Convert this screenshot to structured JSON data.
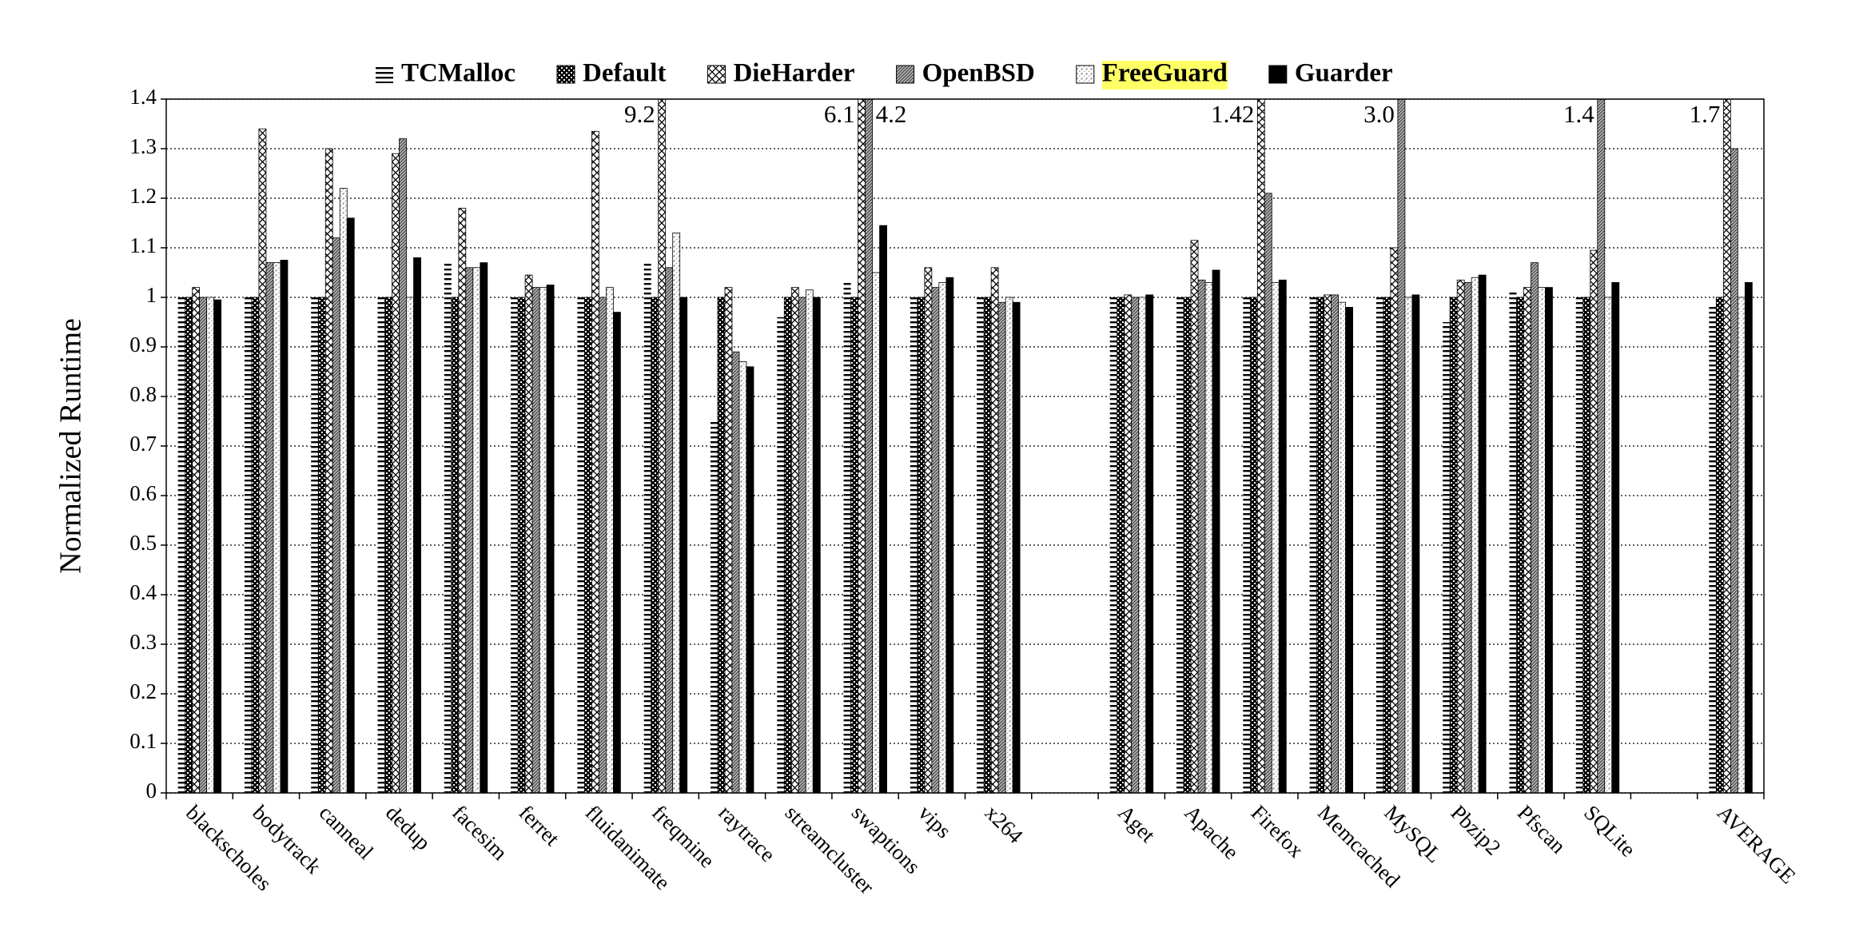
{
  "chart_data": {
    "type": "bar",
    "y_label": "Normalized Runtime",
    "categories": [
      "blackscholes",
      "bodytrack",
      "canneal",
      "dedup",
      "facesim",
      "ferret",
      "fluidanimate",
      "freqmine",
      "raytrace",
      "streamcluster",
      "swaptions",
      "vips",
      "x264",
      null,
      "Aget",
      "Apache",
      "Firefox",
      "Memcached",
      "MySQL",
      "Pbzip2",
      "Pfscan",
      "SQLite",
      null,
      "AVERAGE"
    ],
    "series": [
      {
        "name": "TCMalloc",
        "color": "#000000",
        "pattern": "horizontal-lines",
        "values": [
          1.0,
          1.0,
          1.0,
          1.0,
          1.07,
          1.0,
          1.0,
          1.07,
          0.75,
          0.96,
          1.03,
          1.0,
          1.0,
          null,
          1.0,
          1.0,
          1.0,
          1.0,
          1.0,
          0.95,
          1.01,
          1.0,
          null,
          0.985
        ]
      },
      {
        "name": "Default",
        "color": "#000000",
        "pattern": "checker",
        "values": [
          1.0,
          1.0,
          1.0,
          1.0,
          1.0,
          1.0,
          1.0,
          1.0,
          1.0,
          1.0,
          1.0,
          1.0,
          1.0,
          null,
          1.0,
          1.0,
          1.0,
          1.0,
          1.0,
          1.0,
          1.0,
          1.0,
          null,
          1.0
        ]
      },
      {
        "name": "DieHarder",
        "color": "#000000",
        "pattern": "cross-hatch",
        "values": [
          1.02,
          1.34,
          1.3,
          1.29,
          1.18,
          1.045,
          1.335,
          9.2,
          1.02,
          1.02,
          6.1,
          1.06,
          1.06,
          null,
          1.005,
          1.115,
          1.42,
          1.005,
          1.1,
          1.035,
          1.02,
          1.095,
          null,
          1.7
        ],
        "value_labels": [
          null,
          null,
          null,
          null,
          null,
          null,
          null,
          "9.2",
          null,
          null,
          "6.1",
          null,
          null,
          null,
          null,
          null,
          "1.42",
          null,
          null,
          null,
          null,
          null,
          null,
          "1.7"
        ]
      },
      {
        "name": "OpenBSD",
        "color": "#000000",
        "pattern": "diagonal-dense",
        "values": [
          1.0,
          1.07,
          1.12,
          1.32,
          1.06,
          1.02,
          1.0,
          1.06,
          0.89,
          1.0,
          4.2,
          1.02,
          0.99,
          null,
          1.0,
          1.035,
          1.21,
          1.005,
          3.0,
          1.03,
          1.07,
          1.4,
          null,
          1.3
        ],
        "value_labels": [
          null,
          null,
          null,
          null,
          null,
          null,
          null,
          null,
          null,
          null,
          "4.2",
          null,
          null,
          null,
          null,
          null,
          null,
          null,
          "3.0",
          null,
          null,
          "1.4",
          null,
          null
        ]
      },
      {
        "name": "FreeGuard",
        "color": "#9a9a9a",
        "pattern": "diagonal-light",
        "highlight": "#ffff66",
        "values": [
          1.0,
          1.07,
          1.22,
          1.0,
          1.06,
          1.02,
          1.02,
          1.13,
          0.87,
          1.015,
          1.05,
          1.03,
          1.0,
          null,
          1.0,
          1.03,
          1.03,
          0.99,
          1.0,
          1.04,
          1.02,
          1.0,
          null,
          1.0
        ]
      },
      {
        "name": "Guarder",
        "color": "#000000",
        "pattern": "solid",
        "values": [
          0.995,
          1.075,
          1.16,
          1.08,
          1.07,
          1.025,
          0.97,
          1.0,
          0.86,
          1.0,
          1.145,
          1.04,
          0.99,
          null,
          1.005,
          1.055,
          1.035,
          0.98,
          1.005,
          1.045,
          1.02,
          1.03,
          null,
          1.03
        ]
      }
    ],
    "ylim": [
      0,
      1.4
    ],
    "yticks": [
      0,
      0.1,
      0.2,
      0.3,
      0.4,
      0.5,
      0.6,
      0.7,
      0.8,
      0.9,
      1,
      1.1,
      1.2,
      1.3,
      1.4
    ],
    "grid": true,
    "legend": "top"
  }
}
